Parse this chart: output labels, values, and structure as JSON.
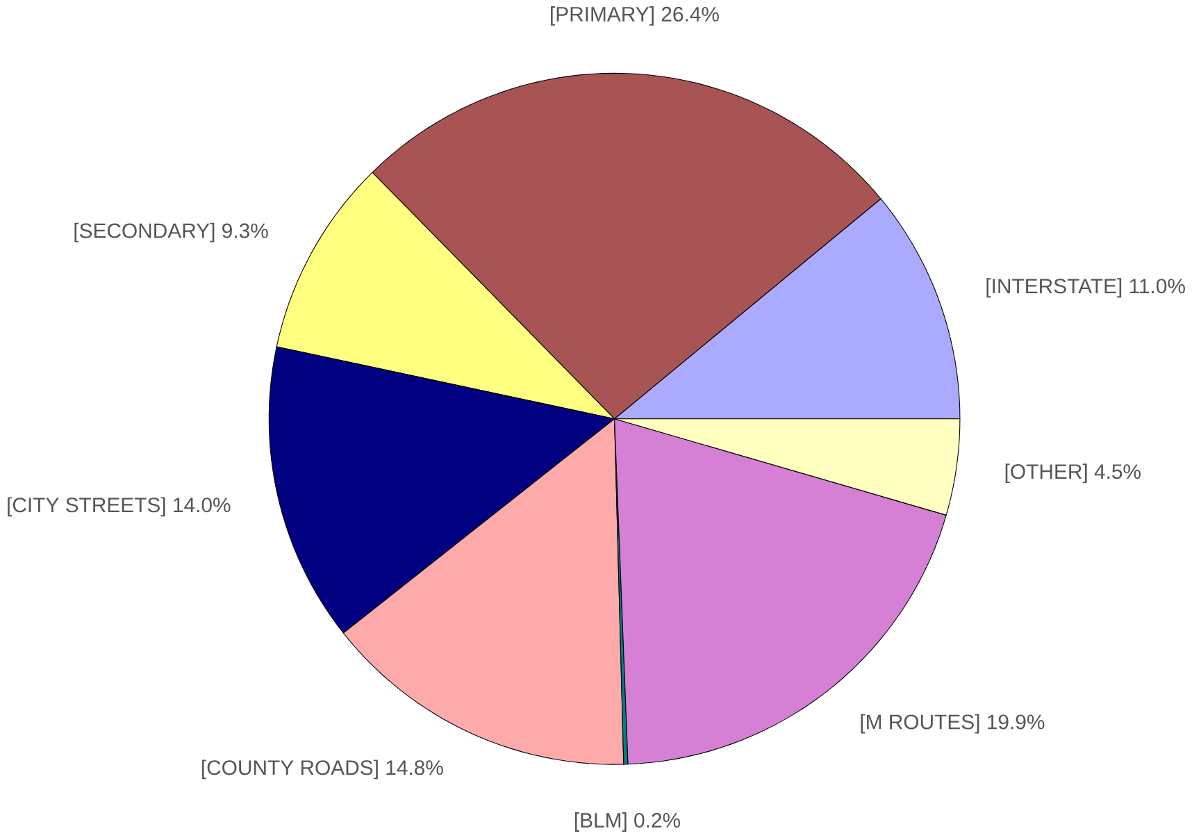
{
  "chart_data": {
    "type": "pie",
    "categories": [
      "[INTERSTATE]",
      "[PRIMARY]",
      "[SECONDARY]",
      "[CITY STREETS]",
      "[COUNTY ROADS]",
      "[BLM]",
      "[M ROUTES]",
      "[OTHER]"
    ],
    "values": [
      11.0,
      26.4,
      9.3,
      14.0,
      14.8,
      0.2,
      19.9,
      4.5
    ],
    "value_labels": [
      "11.0%",
      "26.4%",
      "9.3%",
      "14.0%",
      "14.8%",
      "0.2%",
      "19.9%",
      "4.5%"
    ],
    "colors": [
      "#aaaaff",
      "#a85454",
      "#ffff80",
      "#000080",
      "#ffaaaa",
      "#008080",
      "#d580d5",
      "#ffffc0"
    ]
  }
}
